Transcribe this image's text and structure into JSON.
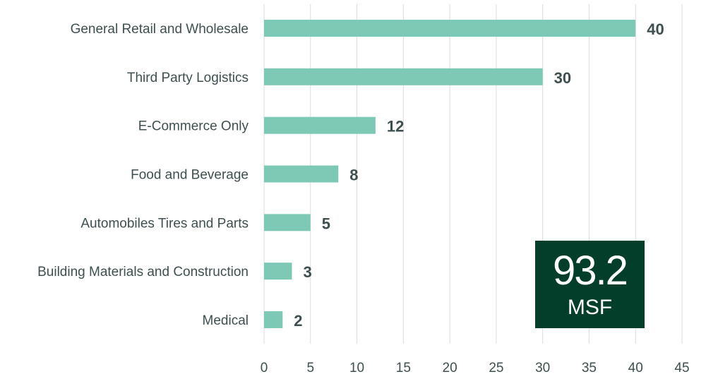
{
  "chart_data": {
    "type": "bar",
    "orientation": "horizontal",
    "categories": [
      "General Retail and Wholesale",
      "Third Party Logistics",
      "E-Commerce Only",
      "Food and Beverage",
      "Automobiles Tires and Parts",
      "Building Materials and Construction",
      "Medical"
    ],
    "values": [
      40,
      30,
      12,
      8,
      5,
      3,
      2
    ],
    "xlim": [
      0,
      45
    ],
    "xticks": [
      "0",
      "5",
      "10",
      "15",
      "20",
      "25",
      "30",
      "35",
      "40",
      "45"
    ],
    "grid": "vertical",
    "bar_color": "#7ec8b6",
    "label_color": "#3f4f4f"
  },
  "total": {
    "value": "93.2",
    "unit": "MSF",
    "background": "#033e2b"
  }
}
